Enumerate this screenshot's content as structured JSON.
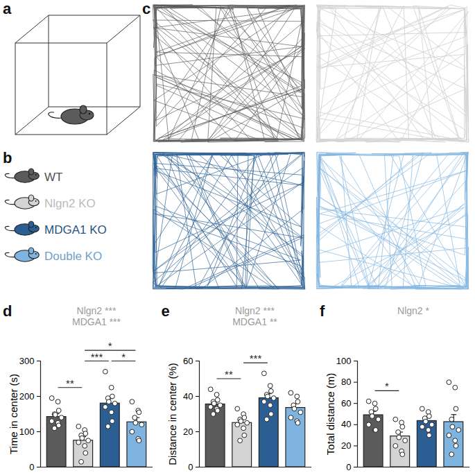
{
  "panel_labels": [
    "a",
    "b",
    "c"
  ],
  "groups": [
    {
      "name": "WT",
      "color": "#5b5b5b"
    },
    {
      "name": "Nlgn2 KO",
      "color": "#d4d4d4"
    },
    {
      "name": "MDGA1 KO",
      "color": "#2b5f94"
    },
    {
      "name": "Double KO",
      "color": "#80b4e0"
    }
  ],
  "chart_data": [
    {
      "type": "bar",
      "panel": "d",
      "y_label": "Time in center (s)",
      "categories": [
        "WT",
        "Nlgn2 KO",
        "MDGA1 KO",
        "Double KO"
      ],
      "colors": [
        "#5b5b5b",
        "#d4d4d4",
        "#2b5f94",
        "#80b4e0"
      ],
      "values": [
        142,
        75,
        180,
        127
      ],
      "errors": [
        9,
        11,
        14,
        13
      ],
      "points": [
        [
          195,
          185,
          160,
          150,
          148,
          140,
          130,
          125,
          118,
          110
        ],
        [
          115,
          105,
          95,
          90,
          82,
          75,
          70,
          60,
          40,
          15
        ],
        [
          270,
          225,
          200,
          195,
          185,
          180,
          170,
          155,
          130,
          115
        ],
        [
          185,
          160,
          155,
          140,
          125,
          120,
          100,
          80,
          75
        ]
      ],
      "ylim": [
        0,
        300
      ],
      "yticks": [
        0,
        100,
        200,
        300
      ],
      "tick_labels": "y",
      "effects": [
        "Nlgn2 ***",
        "MDGA1 ***"
      ],
      "comparisons": [
        {
          "between": [
            "WT",
            "Nlgn2 KO"
          ],
          "label": "**"
        },
        {
          "between": [
            "Nlgn2 KO",
            "MDGA1 KO"
          ],
          "label": "***"
        },
        {
          "between": [
            "MDGA1 KO",
            "Double KO"
          ],
          "label": "*"
        },
        {
          "between": [
            "Nlgn2 KO",
            "Double KO"
          ],
          "label": "*"
        }
      ]
    },
    {
      "type": "bar",
      "panel": "e",
      "y_label": "Distance in center (%)",
      "categories": [
        "WT",
        "Nlgn2 KO",
        "MDGA1 KO",
        "Double KO"
      ],
      "colors": [
        "#5b5b5b",
        "#d4d4d4",
        "#2b5f94",
        "#80b4e0"
      ],
      "values": [
        35.5,
        25,
        39,
        33.5
      ],
      "errors": [
        1.3,
        2,
        2.5,
        2.3
      ],
      "points": [
        [
          44,
          41,
          38,
          37,
          36,
          35,
          34,
          33,
          32,
          30
        ],
        [
          33,
          30,
          28,
          27,
          26,
          25,
          24,
          22,
          18,
          15
        ],
        [
          53,
          46,
          43,
          41,
          40,
          39,
          37,
          35,
          30,
          27
        ],
        [
          42,
          40,
          37,
          35,
          33,
          31,
          28,
          26,
          25
        ]
      ],
      "ylim": [
        0,
        60
      ],
      "yticks": [
        0,
        20,
        40,
        60
      ],
      "tick_labels": "y",
      "effects": [
        "Nlgn2 ***",
        "MDGA1 **"
      ],
      "comparisons": [
        {
          "between": [
            "WT",
            "Nlgn2 KO"
          ],
          "label": "**"
        },
        {
          "between": [
            "Nlgn2 KO",
            "MDGA1 KO"
          ],
          "label": "***"
        }
      ]
    },
    {
      "type": "bar",
      "panel": "f",
      "y_label": "Total distance (m)",
      "categories": [
        "WT",
        "Nlgn2 KO",
        "MDGA1 KO",
        "Double KO"
      ],
      "colors": [
        "#5b5b5b",
        "#d4d4d4",
        "#2b5f94",
        "#80b4e0"
      ],
      "values": [
        49,
        29,
        43.5,
        42.5
      ],
      "errors": [
        3.5,
        4,
        3.5,
        7
      ],
      "points": [
        [
          62,
          60,
          55,
          52,
          48,
          45,
          40,
          35,
          35
        ],
        [
          45,
          42,
          38,
          33,
          28,
          25,
          20,
          15,
          12
        ],
        [
          55,
          52,
          48,
          46,
          43,
          40,
          38,
          35,
          30
        ],
        [
          80,
          75,
          55,
          45,
          38,
          35,
          30,
          25,
          20,
          12
        ]
      ],
      "ylim": [
        0,
        100
      ],
      "yticks": [
        0,
        20,
        40,
        60,
        80,
        100
      ],
      "tick_labels": "y",
      "effects": [
        "Nlgn2 *"
      ],
      "comparisons": [
        {
          "between": [
            "WT",
            "Nlgn2 KO"
          ],
          "label": "*"
        }
      ]
    }
  ]
}
